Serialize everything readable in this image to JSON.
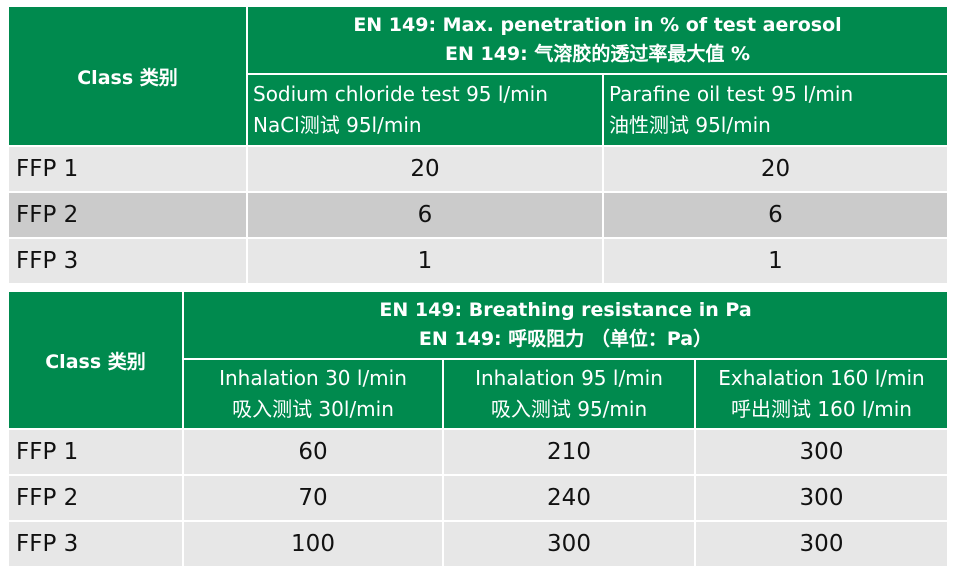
{
  "table1": {
    "class_header": "Class 类别",
    "title_line1": "EN 149: Max. penetration in % of test aerosol",
    "title_line2": "EN 149: 气溶胶的透过率最大值 %",
    "columns": [
      {
        "line1": "Sodium chloride test 95 l/min",
        "line2": "NaCl测试 95l/min"
      },
      {
        "line1": "Parafine oil test 95 l/min",
        "line2": "油性测试 95l/min"
      }
    ],
    "rows": [
      {
        "class": "FFP 1",
        "values": [
          "20",
          "20"
        ]
      },
      {
        "class": "FFP 2",
        "values": [
          "6",
          "6"
        ]
      },
      {
        "class": "FFP 3",
        "values": [
          "1",
          "1"
        ]
      }
    ]
  },
  "table2": {
    "class_header": "Class 类别",
    "title_line1": "EN 149: Breathing resistance in Pa",
    "title_line2": "EN 149: 呼吸阻力 （单位：Pa）",
    "columns": [
      {
        "line1": "Inhalation 30 l/min",
        "line2": "吸入测试 30l/min"
      },
      {
        "line1": "Inhalation 95 l/min",
        "line2": "吸入测试 95/min"
      },
      {
        "line1": "Exhalation 160 l/min",
        "line2": "呼出测试 160 l/min"
      }
    ],
    "rows": [
      {
        "class": "FFP 1",
        "values": [
          "60",
          "210",
          "300"
        ]
      },
      {
        "class": "FFP 2",
        "values": [
          "70",
          "240",
          "300"
        ]
      },
      {
        "class": "FFP 3",
        "values": [
          "100",
          "300",
          "300"
        ]
      }
    ]
  },
  "colors": {
    "header_green": "#008a4e",
    "row_light": "#e7e7e7",
    "row_dark": "#cbcbcb"
  }
}
